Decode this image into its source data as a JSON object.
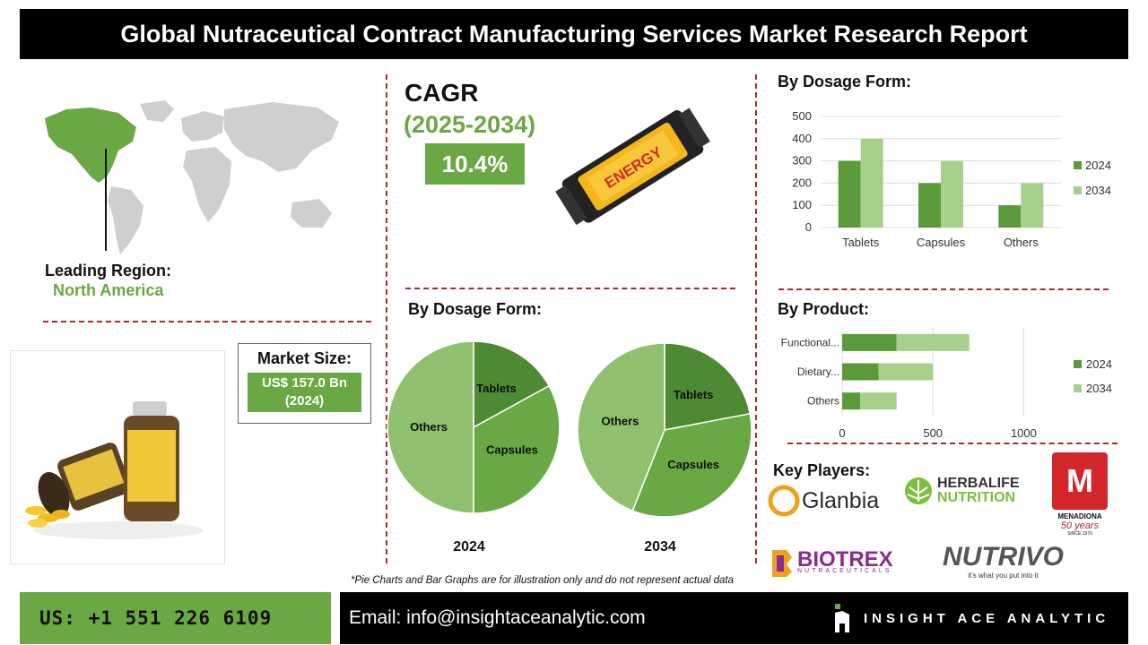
{
  "title": "Global Nutraceutical Contract Manufacturing Services Market Research Report",
  "region": {
    "label": "Leading Region:",
    "value": "North America"
  },
  "cagr": {
    "label": "CAGR",
    "period": "(2025-2034)",
    "value": "10.4%"
  },
  "energy_bar_text": "ENERGY",
  "market_size": {
    "label": "Market Size:",
    "value_line1": "US$ 157.0 Bn",
    "value_line2": "(2024)"
  },
  "pie_section_title": "By Dosage Form:",
  "bar_dosage_title": "By Dosage Form:",
  "bar_product_title": "By Product:",
  "key_players_title": "Key Players:",
  "players": {
    "glanbia": "Glanbia",
    "herbalife_line1": "HERBALIFE",
    "herbalife_line2": "NUTRITION",
    "menadiona": "MENADIONA",
    "menadiona_sub": "50 years",
    "menadiona_since": "SINCE 1970",
    "biotrex": "BIOTREX",
    "biotrex_sub": "NUTRACEUTICALS",
    "nutrivo": "NUTRIVO",
    "nutrivo_tag": "it's what you put into it"
  },
  "disclaimer": "*Pie Charts and Bar Graphs are for illustration only and do not represent actual data",
  "footer": {
    "phone": "US: +1 551 226 6109",
    "email": "Email: info@insightaceanalytic.com",
    "brand": "INSIGHT ACE ANALYTIC"
  },
  "colors": {
    "dark_green": "#5a9a3a",
    "light_green": "#a7d08c",
    "pie_dark": "#4e8a33",
    "pie_mid": "#6aa843",
    "pie_light": "#8fc06e",
    "accent_red": "#b3262c"
  },
  "chart_data": [
    {
      "type": "bar",
      "title": "",
      "categories": [
        "Tablets",
        "Capsules",
        "Others"
      ],
      "series": [
        {
          "name": "2024",
          "values": [
            300,
            200,
            100
          ]
        },
        {
          "name": "2034",
          "values": [
            400,
            300,
            200
          ]
        }
      ],
      "ylim": [
        0,
        500
      ],
      "yticks": [
        "0",
        "100",
        "200",
        "300",
        "400",
        "500"
      ],
      "grid": true,
      "legend": "right"
    },
    {
      "type": "bar",
      "orientation": "horizontal",
      "stacked": true,
      "categories": [
        "Functional...",
        "Dietary...",
        "Others"
      ],
      "series": [
        {
          "name": "2024",
          "values": [
            300,
            200,
            100
          ]
        },
        {
          "name": "2034",
          "values": [
            400,
            300,
            200
          ]
        }
      ],
      "xlim": [
        0,
        1250
      ],
      "xticks": [
        "0",
        "500",
        "1000"
      ],
      "grid": true,
      "legend": "right"
    },
    {
      "type": "pie",
      "label": "2024",
      "slices": [
        {
          "name": "Tablets",
          "value": 17
        },
        {
          "name": "Capsules",
          "value": 33
        },
        {
          "name": "Others",
          "value": 50
        }
      ]
    },
    {
      "type": "pie",
      "label": "2034",
      "slices": [
        {
          "name": "Tablets",
          "value": 22
        },
        {
          "name": "Capsules",
          "value": 34
        },
        {
          "name": "Others",
          "value": 44
        }
      ]
    }
  ]
}
